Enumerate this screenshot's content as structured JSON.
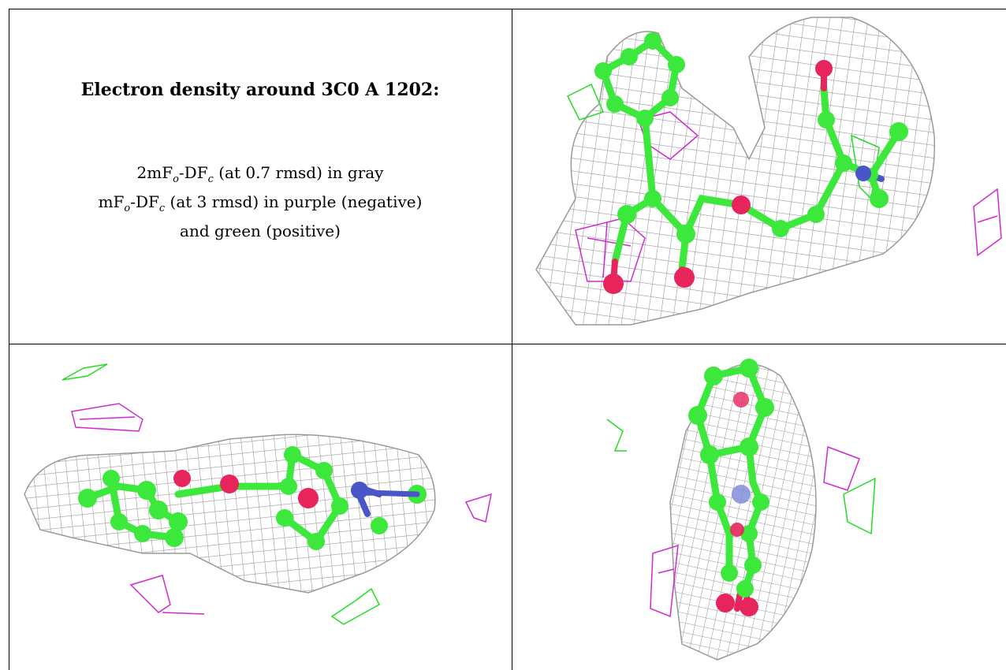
{
  "title": "Electron density around 3C0 A 1202:",
  "legend": {
    "line1": {
      "prefix": "2mF",
      "sub1": "o",
      "mid": "-DF",
      "sub2": "c",
      "suffix": " (at 0.7 rmsd) in gray"
    },
    "line2": {
      "prefix": "mF",
      "sub1": "o",
      "mid": "-DF",
      "sub2": "c",
      "suffix": " (at 3 rmsd) in purple (negative)"
    },
    "line3": "and green (positive)"
  },
  "colors": {
    "mesh_gray": "#9a9a9a",
    "carbon_green": "#3ce83c",
    "oxygen_red": "#e8245c",
    "nitrogen_blue": "#4a55c8",
    "negative_purple": "#d02ad0",
    "positive_green": "#22dd22"
  },
  "views": [
    "top-right",
    "bottom-left",
    "bottom-right"
  ]
}
